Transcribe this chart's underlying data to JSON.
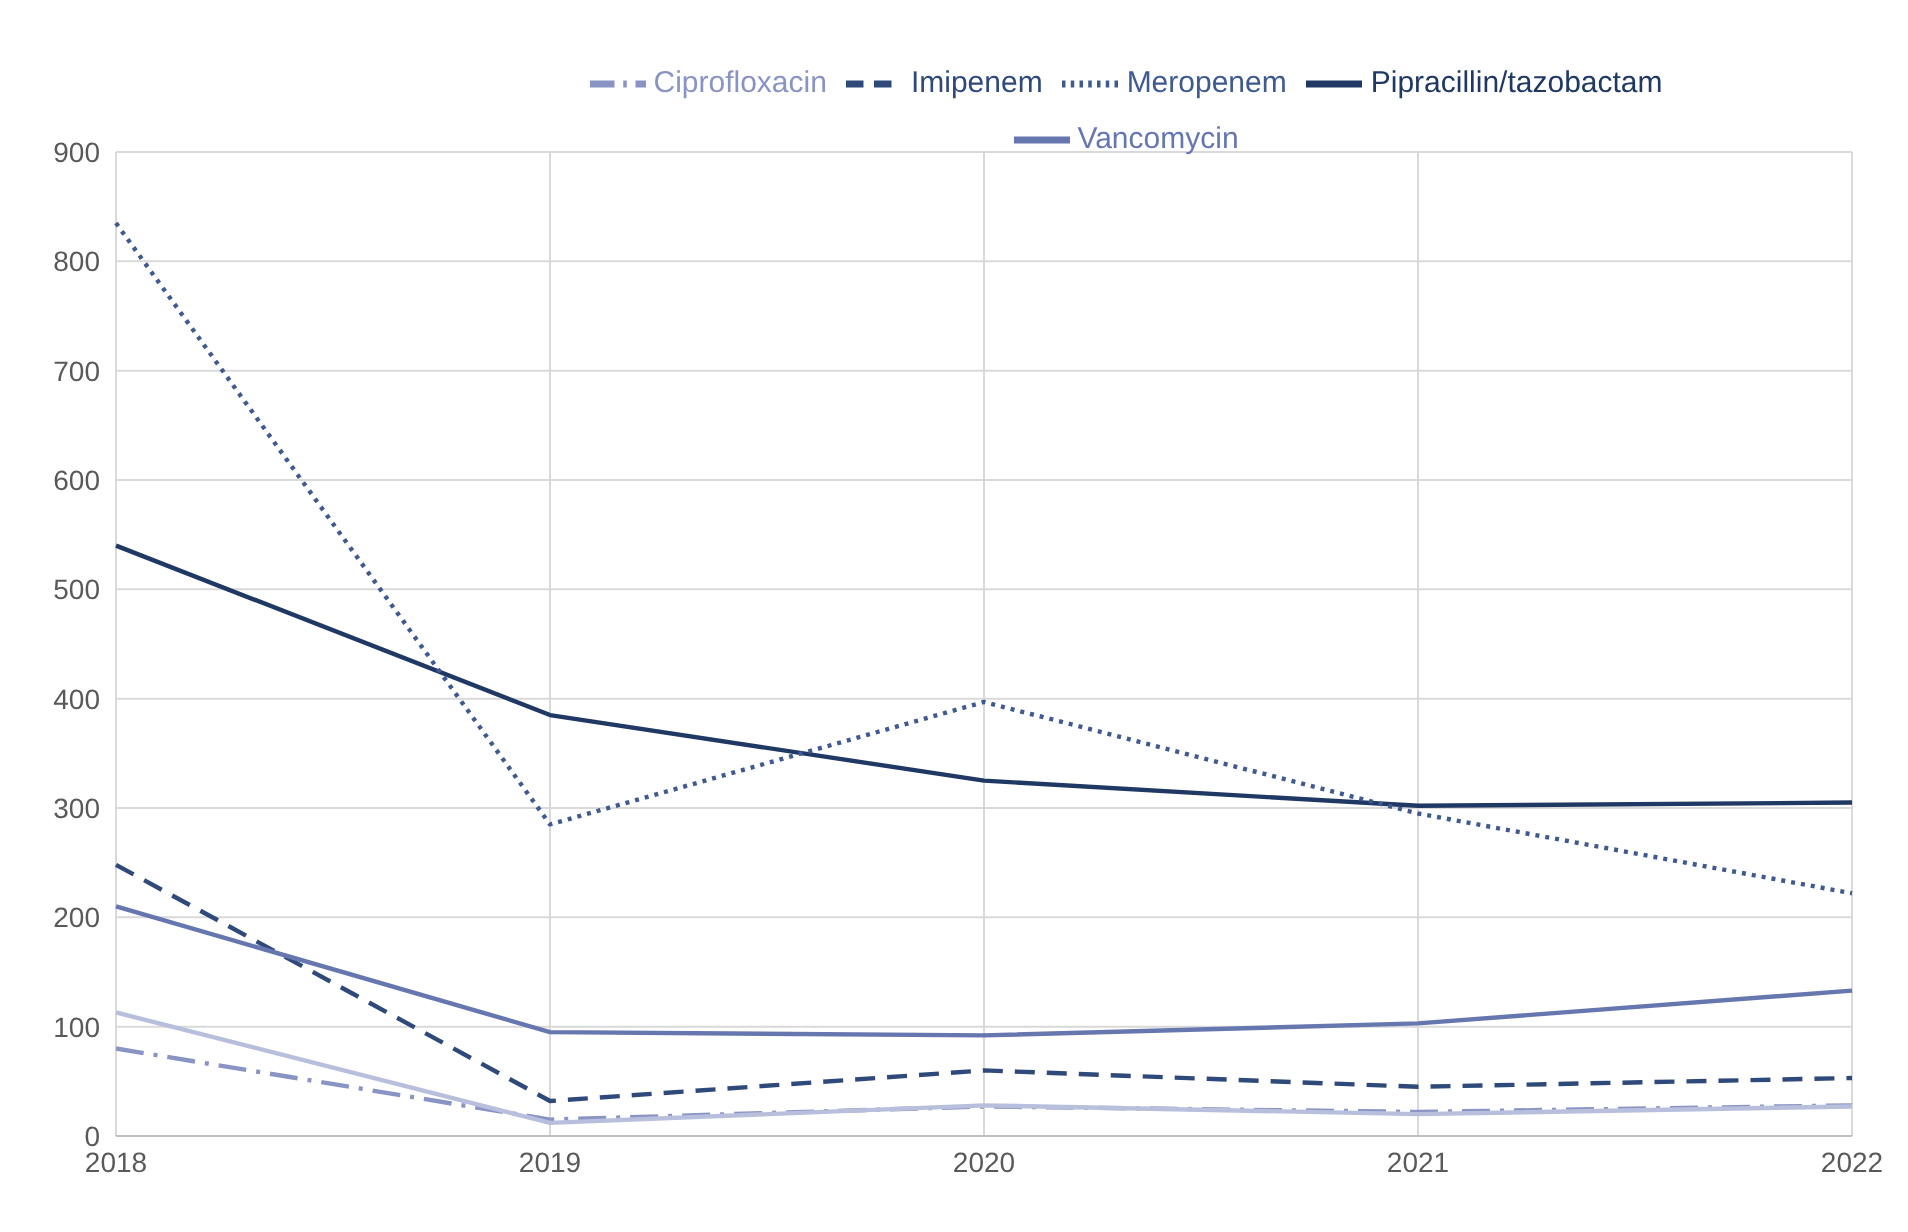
{
  "chart_data": {
    "type": "line",
    "categories": [
      "2018",
      "2019",
      "2020",
      "2021",
      "2022"
    ],
    "series": [
      {
        "name": "Pipracillin/tazobactam",
        "color": "#1f3864",
        "line_style": "solid",
        "values": [
          540,
          385,
          325,
          302,
          305
        ]
      },
      {
        "name": "Imipenem",
        "color": "#2f4a7a",
        "line_style": "dashed",
        "values": [
          248,
          32,
          60,
          45,
          53
        ]
      },
      {
        "name": "Meropenem",
        "color": "#3e5a8e",
        "line_style": "dotted",
        "values": [
          835,
          285,
          397,
          295,
          222
        ]
      },
      {
        "name": "Vancomycin",
        "color": "#6677b0",
        "line_style": "solid",
        "values": [
          210,
          95,
          92,
          103,
          133
        ]
      },
      {
        "name": "Ciprofloxacin",
        "color": "#8a94c4",
        "line_style": "dashdot",
        "values": [
          80,
          15,
          27,
          22,
          28
        ]
      },
      {
        "color": "#b8bfdd",
        "line_style": "solid",
        "values": [
          113,
          12,
          28,
          20,
          27
        ]
      }
    ],
    "ylim": [
      0,
      900
    ],
    "yticks": [
      0,
      100,
      200,
      300,
      400,
      500,
      600,
      700,
      800,
      900
    ],
    "grid": true,
    "legend": "top",
    "marker": "none"
  }
}
